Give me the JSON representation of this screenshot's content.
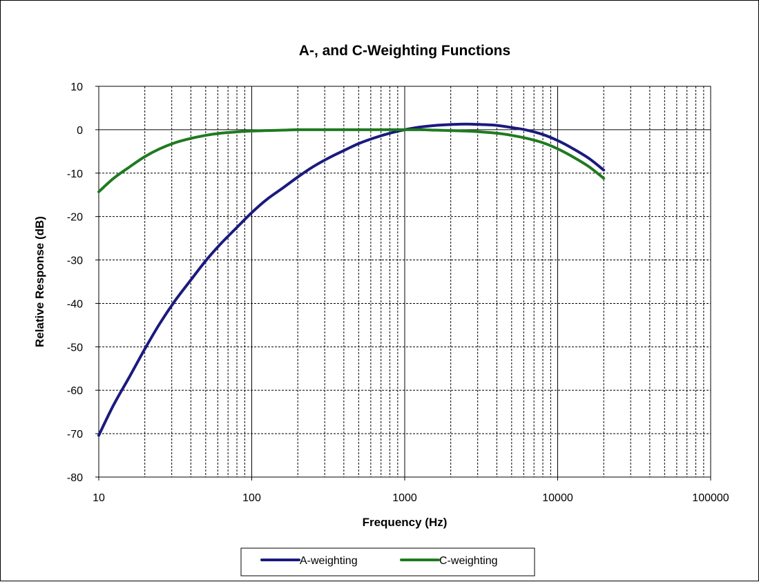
{
  "chart_data": {
    "type": "line",
    "title": "A-, and C-Weighting  Functions",
    "xlabel": "Frequency (Hz)",
    "ylabel": "Relative Response (dB)",
    "x_scale": "log",
    "xlim": [
      10,
      100000
    ],
    "ylim": [
      -80,
      10
    ],
    "x_ticks": [
      "10",
      "100",
      "1000",
      "10000",
      "100000"
    ],
    "y_ticks": [
      "10",
      "0",
      "-10",
      "-20",
      "-30",
      "-40",
      "-50",
      "-60",
      "-70",
      "-80"
    ],
    "grid": true,
    "legend_position": "bottom",
    "series": [
      {
        "name": "A-weighting",
        "color": "#1a1a7e",
        "x": [
          10,
          12.5,
          16,
          20,
          25,
          31.5,
          40,
          50,
          63,
          80,
          100,
          125,
          160,
          200,
          250,
          315,
          400,
          500,
          630,
          800,
          1000,
          1250,
          1600,
          2000,
          2500,
          3150,
          4000,
          5000,
          6300,
          8000,
          10000,
          12500,
          16000,
          20000
        ],
        "y": [
          -70.4,
          -63.4,
          -56.7,
          -50.5,
          -44.7,
          -39.4,
          -34.6,
          -30.2,
          -26.2,
          -22.5,
          -19.1,
          -16.1,
          -13.4,
          -10.9,
          -8.6,
          -6.6,
          -4.8,
          -3.2,
          -1.9,
          -0.8,
          0,
          0.6,
          1.0,
          1.2,
          1.3,
          1.2,
          1.0,
          0.5,
          -0.1,
          -1.1,
          -2.5,
          -4.3,
          -6.6,
          -9.3
        ]
      },
      {
        "name": "C-weighting",
        "color": "#1f7a1f",
        "x": [
          10,
          12.5,
          16,
          20,
          25,
          31.5,
          40,
          50,
          63,
          80,
          100,
          125,
          160,
          200,
          250,
          315,
          400,
          500,
          630,
          800,
          1000,
          1250,
          1600,
          2000,
          2500,
          3150,
          4000,
          5000,
          6300,
          8000,
          10000,
          12500,
          16000,
          20000
        ],
        "y": [
          -14.3,
          -11.2,
          -8.5,
          -6.2,
          -4.4,
          -3.0,
          -2.0,
          -1.3,
          -0.8,
          -0.5,
          -0.3,
          -0.2,
          -0.1,
          0,
          0,
          0,
          0,
          0,
          0,
          0,
          0,
          0,
          -0.1,
          -0.2,
          -0.3,
          -0.5,
          -0.8,
          -1.3,
          -2.0,
          -3.0,
          -4.4,
          -6.2,
          -8.5,
          -11.2
        ]
      }
    ]
  }
}
